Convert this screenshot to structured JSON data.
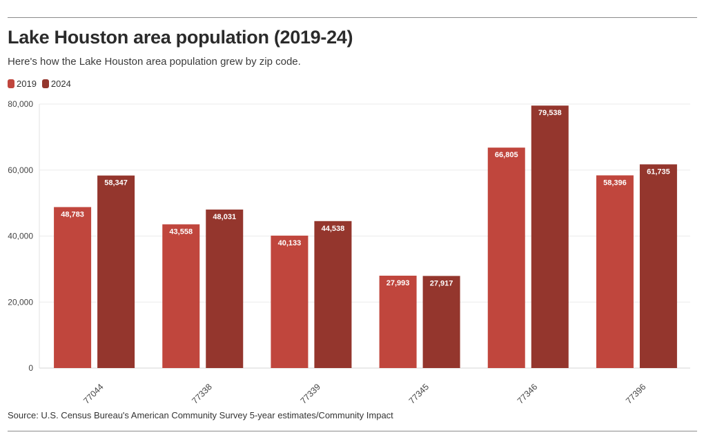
{
  "header": {
    "title": "Lake Houston area population (2019-24)",
    "subtitle": "Here's how the Lake Houston area population grew by zip code."
  },
  "footer": {
    "source": "Source: U.S. Census Bureau's American Community Survey 5-year estimates/Community Impact"
  },
  "colors": {
    "series_2019": "#c0463d",
    "series_2024": "#94362d",
    "grid": "#ebebeb",
    "rule": "#8a8a8a"
  },
  "chart_data": {
    "type": "bar",
    "title": "Lake Houston area population (2019-24)",
    "subtitle": "Here's how the Lake Houston area population grew by zip code.",
    "categories": [
      "77044",
      "77338",
      "77339",
      "77345",
      "77346",
      "77396"
    ],
    "series": [
      {
        "name": "2019",
        "color": "#c0463d",
        "values": [
          48783,
          43558,
          40133,
          27993,
          66805,
          58396
        ],
        "labels": [
          "48,783",
          "43,558",
          "40,133",
          "27,993",
          "66,805",
          "58,396"
        ]
      },
      {
        "name": "2024",
        "color": "#94362d",
        "values": [
          58347,
          48031,
          44538,
          27917,
          79538,
          61735
        ],
        "labels": [
          "58,347",
          "48,031",
          "44,538",
          "27,917",
          "79,538",
          "61,735"
        ]
      }
    ],
    "yticks": [
      0,
      20000,
      40000,
      60000,
      80000
    ],
    "ytick_labels": [
      "0",
      "20,000",
      "40,000",
      "60,000",
      "80,000"
    ],
    "ylim": [
      0,
      80000
    ],
    "xlabel": "",
    "ylabel": "",
    "grid": true,
    "legend_position": "top-left"
  }
}
